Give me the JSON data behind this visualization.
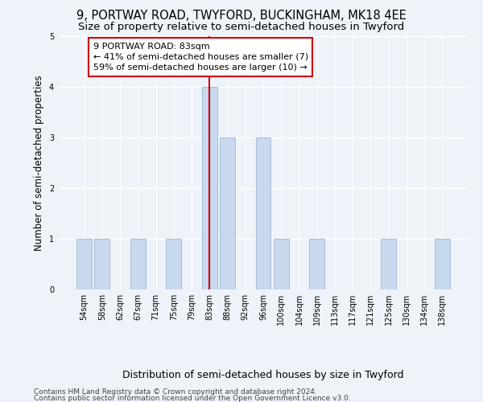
{
  "title_line1": "9, PORTWAY ROAD, TWYFORD, BUCKINGHAM, MK18 4EE",
  "title_line2": "Size of property relative to semi-detached houses in Twyford",
  "xlabel": "Distribution of semi-detached houses by size in Twyford",
  "ylabel": "Number of semi-detached properties",
  "categories": [
    "54sqm",
    "58sqm",
    "62sqm",
    "67sqm",
    "71sqm",
    "75sqm",
    "79sqm",
    "83sqm",
    "88sqm",
    "92sqm",
    "96sqm",
    "100sqm",
    "104sqm",
    "109sqm",
    "113sqm",
    "117sqm",
    "121sqm",
    "125sqm",
    "130sqm",
    "134sqm",
    "138sqm"
  ],
  "values": [
    1,
    1,
    0,
    1,
    0,
    1,
    0,
    4,
    3,
    0,
    3,
    1,
    0,
    1,
    0,
    0,
    0,
    1,
    0,
    0,
    1
  ],
  "bar_color": "#c8d8ee",
  "bar_edgecolor": "#a8bcd8",
  "highlight_index": 7,
  "highlight_line_color": "#cc0000",
  "annotation_text": "9 PORTWAY ROAD: 83sqm\n← 41% of semi-detached houses are smaller (7)\n59% of semi-detached houses are larger (10) →",
  "annotation_box_edgecolor": "#cc0000",
  "ylim": [
    0,
    5
  ],
  "yticks": [
    0,
    1,
    2,
    3,
    4,
    5
  ],
  "footer_line1": "Contains HM Land Registry data © Crown copyright and database right 2024.",
  "footer_line2": "Contains public sector information licensed under the Open Government Licence v3.0.",
  "background_color": "#eef2f9",
  "plot_background_color": "#eef2f9",
  "grid_color": "#ffffff",
  "title_fontsize": 10.5,
  "subtitle_fontsize": 9.5,
  "ylabel_fontsize": 8.5,
  "xlabel_fontsize": 9,
  "tick_fontsize": 7,
  "annotation_fontsize": 8,
  "footer_fontsize": 6.5
}
